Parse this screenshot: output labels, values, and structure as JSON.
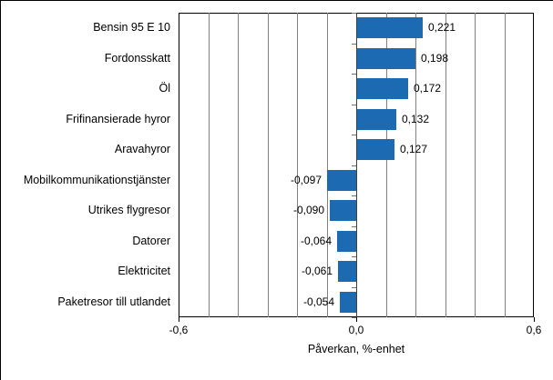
{
  "chart_data": {
    "type": "bar",
    "orientation": "horizontal",
    "title": "",
    "xlabel": "Påverkan, %-enhet",
    "ylabel": "",
    "categories": [
      "Bensin 95 E 10",
      "Fordonsskatt",
      "Öl",
      "Frifinansierade hyror",
      "Aravahyror",
      "Mobilkommunikationstjänster",
      "Utrikes flygresor",
      "Datorer",
      "Elektricitet",
      "Paketresor till utlandet"
    ],
    "values": [
      0.221,
      0.198,
      0.172,
      0.132,
      0.127,
      -0.097,
      -0.09,
      -0.064,
      -0.061,
      -0.054
    ],
    "value_labels": [
      "0,221",
      "0,198",
      "0,172",
      "0,132",
      "0,127",
      "-0,097",
      "-0,090",
      "-0,064",
      "-0,061",
      "-0,054"
    ],
    "xlim": [
      -0.6,
      0.6
    ],
    "gridline_step": 0.1,
    "grid": true,
    "legend": false,
    "x_ticks": [
      {
        "value": -0.6,
        "label": "-0,6"
      },
      {
        "value": 0.0,
        "label": "0,0"
      },
      {
        "value": 0.6,
        "label": "0,6"
      }
    ],
    "colors": {
      "bar": "#1c6bb2",
      "gridline": "#808080",
      "plot_border": "#000000",
      "text": "#000000",
      "background": "#ffffff"
    }
  }
}
